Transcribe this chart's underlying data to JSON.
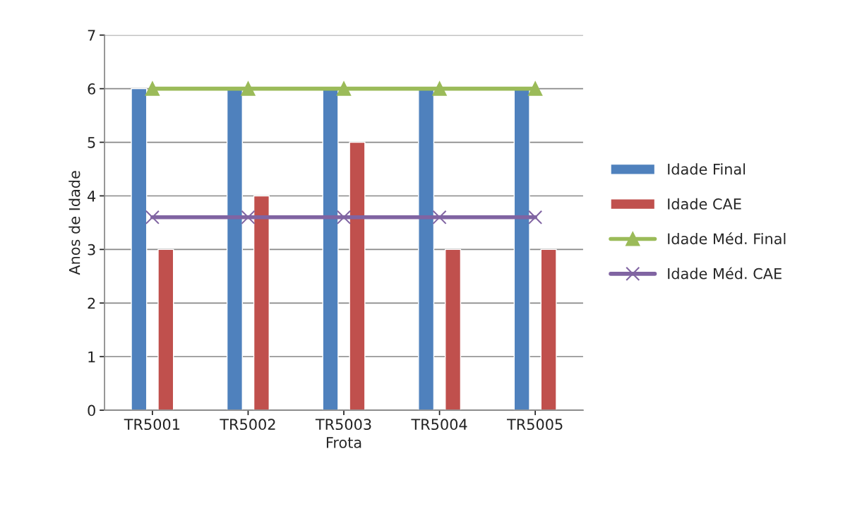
{
  "chart_data": {
    "type": "bar",
    "xlabel": "Frota",
    "ylabel": "Anos de Idade",
    "categories": [
      "TR5001",
      "TR5002",
      "TR5003",
      "TR5004",
      "TR5005"
    ],
    "series": [
      {
        "name": "Idade Final",
        "color": "#4f81bd",
        "values": [
          6,
          6,
          6,
          6,
          6
        ]
      },
      {
        "name": "Idade CAE",
        "color": "#c0504d",
        "values": [
          3,
          4,
          5,
          3,
          3
        ]
      },
      {
        "name": "Idade Méd. Final",
        "type": "line",
        "marker": "triangle",
        "color": "#9bbb59",
        "values": [
          6,
          6,
          6,
          6,
          6
        ]
      },
      {
        "name": "Idade Méd. CAE",
        "type": "line",
        "marker": "cross",
        "color": "#8064a2",
        "values": [
          3.6,
          3.6,
          3.6,
          3.6,
          3.6
        ]
      }
    ],
    "ylim": [
      0,
      7
    ],
    "yticks": [
      0,
      1,
      2,
      3,
      4,
      5,
      6,
      7
    ],
    "grid": "y",
    "legend": "right"
  }
}
